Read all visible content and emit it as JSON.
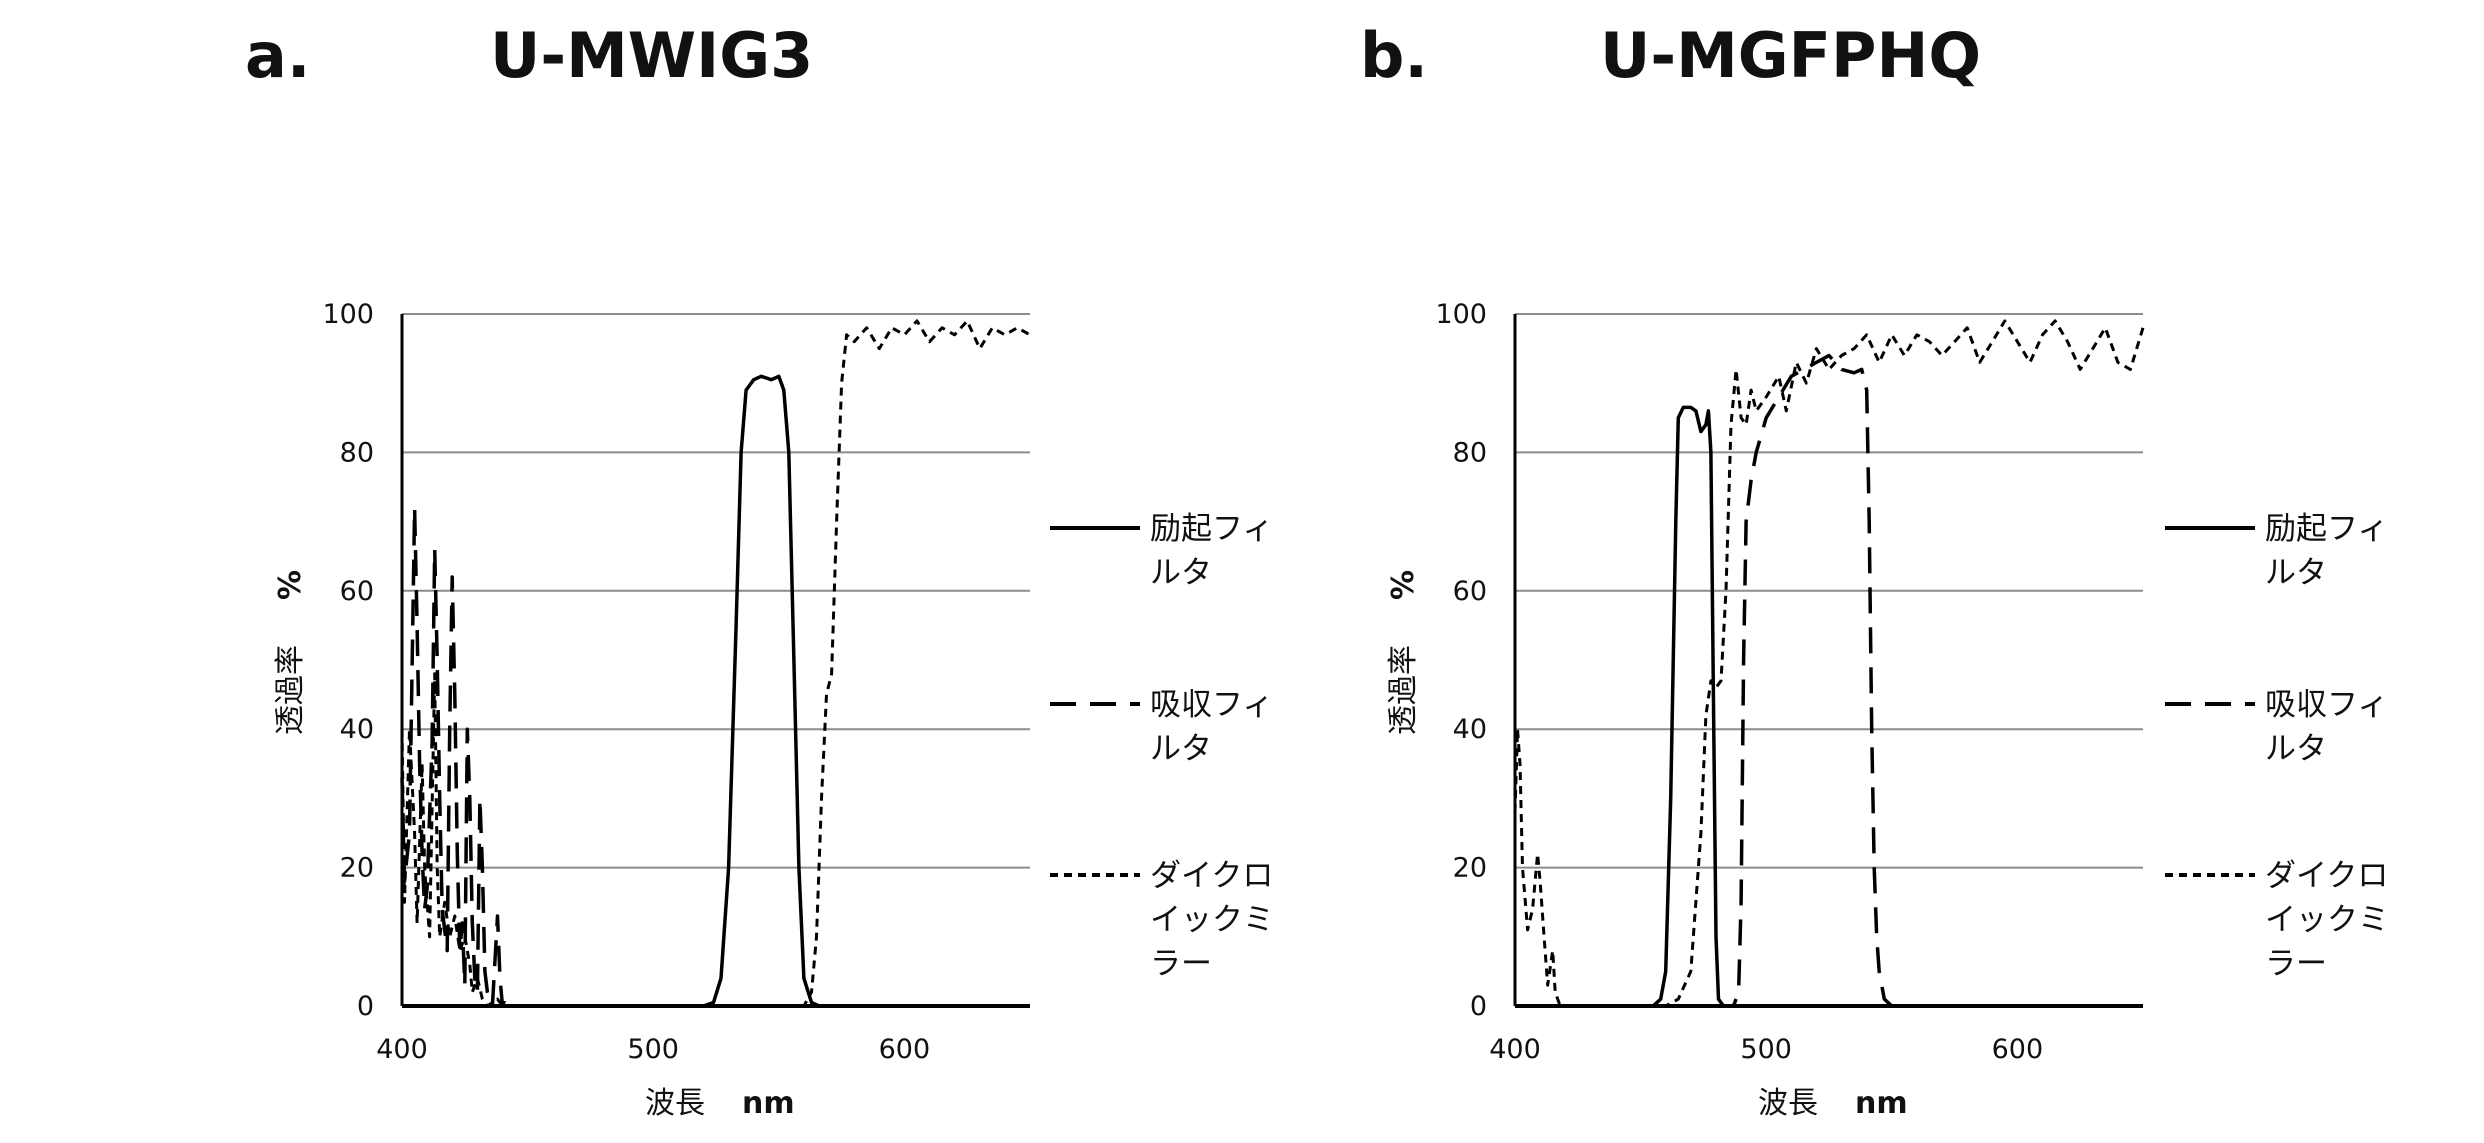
{
  "chart_data": [
    {
      "type": "line",
      "panel": "a.",
      "title": "U-MWIG3",
      "xlabel": "波長",
      "xunit": "nm",
      "ylabel": "透過率",
      "yunit": "%",
      "xlim": [
        400,
        650
      ],
      "ylim": [
        0,
        100
      ],
      "xticks": [
        400,
        500,
        600
      ],
      "yticks": [
        0,
        20,
        40,
        60,
        80,
        100
      ],
      "grid": true,
      "legend_position": "right",
      "series": [
        {
          "name": "励起フィルタ",
          "style": "solid",
          "points": [
            [
              400,
              0
            ],
            [
              520,
              0
            ],
            [
              524,
              0.5
            ],
            [
              527,
              4
            ],
            [
              530,
              20
            ],
            [
              533,
              55
            ],
            [
              535,
              80
            ],
            [
              537,
              89
            ],
            [
              540,
              90.5
            ],
            [
              543,
              91
            ],
            [
              547,
              90.5
            ],
            [
              550,
              91
            ],
            [
              552,
              89
            ],
            [
              554,
              80
            ],
            [
              556,
              50
            ],
            [
              558,
              20
            ],
            [
              560,
              4
            ],
            [
              563,
              0.5
            ],
            [
              566,
              0
            ],
            [
              650,
              0
            ]
          ]
        },
        {
          "name": "吸収フィルタ",
          "style": "dashed",
          "points": [
            [
              400,
              33
            ],
            [
              401,
              18
            ],
            [
              403,
              25
            ],
            [
              405,
              72
            ],
            [
              406,
              55
            ],
            [
              407,
              35
            ],
            [
              408,
              22
            ],
            [
              409,
              14
            ],
            [
              410,
              17
            ],
            [
              412,
              38
            ],
            [
              413,
              66
            ],
            [
              414,
              50
            ],
            [
              415,
              30
            ],
            [
              416,
              14
            ],
            [
              418,
              8
            ],
            [
              419,
              40
            ],
            [
              420,
              62
            ],
            [
              421,
              45
            ],
            [
              422,
              22
            ],
            [
              423,
              8
            ],
            [
              424,
              12
            ],
            [
              425,
              3
            ],
            [
              426,
              40
            ],
            [
              427,
              30
            ],
            [
              428,
              12
            ],
            [
              429,
              4
            ],
            [
              430,
              2
            ],
            [
              431,
              30
            ],
            [
              432,
              20
            ],
            [
              433,
              5
            ],
            [
              434,
              2
            ],
            [
              436,
              0
            ],
            [
              438,
              13
            ],
            [
              439,
              4
            ],
            [
              440,
              0
            ],
            [
              441,
              1
            ],
            [
              443,
              0
            ],
            [
              650,
              0
            ]
          ]
        },
        {
          "name": "ダイクロイックミラー",
          "style": "dotted",
          "points": [
            [
              400,
              40
            ],
            [
              401,
              15
            ],
            [
              403,
              40
            ],
            [
              405,
              25
            ],
            [
              406,
              12
            ],
            [
              408,
              35
            ],
            [
              409,
              20
            ],
            [
              411,
              10
            ],
            [
              413,
              48
            ],
            [
              414,
              20
            ],
            [
              415,
              10
            ],
            [
              417,
              15
            ],
            [
              419,
              10
            ],
            [
              421,
              13
            ],
            [
              423,
              8
            ],
            [
              425,
              10
            ],
            [
              427,
              6
            ],
            [
              428,
              2
            ],
            [
              430,
              4
            ],
            [
              432,
              1
            ],
            [
              434,
              0
            ],
            [
              438,
              1
            ],
            [
              440,
              0
            ],
            [
              560,
              0
            ],
            [
              563,
              2
            ],
            [
              565,
              10
            ],
            [
              567,
              30
            ],
            [
              569,
              45
            ],
            [
              571,
              48
            ],
            [
              573,
              70
            ],
            [
              575,
              90
            ],
            [
              577,
              97
            ],
            [
              580,
              96
            ],
            [
              585,
              98
            ],
            [
              590,
              95
            ],
            [
              595,
              98
            ],
            [
              600,
              97
            ],
            [
              605,
              99
            ],
            [
              610,
              96
            ],
            [
              615,
              98
            ],
            [
              620,
              97
            ],
            [
              625,
              99
            ],
            [
              630,
              95
            ],
            [
              635,
              98
            ],
            [
              640,
              97
            ],
            [
              645,
              98
            ],
            [
              650,
              97
            ]
          ]
        }
      ]
    },
    {
      "type": "line",
      "panel": "b.",
      "title": "U-MGFPHQ",
      "xlabel": "波長",
      "xunit": "nm",
      "ylabel": "透過率",
      "yunit": "%",
      "xlim": [
        400,
        650
      ],
      "ylim": [
        0,
        100
      ],
      "xticks": [
        400,
        500,
        600
      ],
      "yticks": [
        0,
        20,
        40,
        60,
        80,
        100
      ],
      "grid": true,
      "legend_position": "right",
      "series": [
        {
          "name": "励起フィルタ",
          "style": "solid",
          "points": [
            [
              400,
              0
            ],
            [
              455,
              0
            ],
            [
              458,
              1
            ],
            [
              460,
              5
            ],
            [
              462,
              30
            ],
            [
              464,
              70
            ],
            [
              465,
              85
            ],
            [
              467,
              86.5
            ],
            [
              470,
              86.5
            ],
            [
              472,
              86
            ],
            [
              474,
              83
            ],
            [
              476,
              84
            ],
            [
              477,
              86
            ],
            [
              478,
              80
            ],
            [
              479,
              45
            ],
            [
              480,
              10
            ],
            [
              481,
              1
            ],
            [
              483,
              0
            ],
            [
              650,
              0
            ]
          ]
        },
        {
          "name": "吸収フィルタ",
          "style": "dashed",
          "points": [
            [
              400,
              0
            ],
            [
              487,
              0
            ],
            [
              489,
              2
            ],
            [
              490,
              15
            ],
            [
              491,
              50
            ],
            [
              492,
              70
            ],
            [
              494,
              76
            ],
            [
              496,
              80
            ],
            [
              500,
              85
            ],
            [
              505,
              88
            ],
            [
              510,
              91
            ],
            [
              515,
              92
            ],
            [
              520,
              93
            ],
            [
              525,
              94
            ],
            [
              530,
              92
            ],
            [
              535,
              91.5
            ],
            [
              538,
              92
            ],
            [
              540,
              89
            ],
            [
              541,
              70
            ],
            [
              542,
              40
            ],
            [
              543,
              20
            ],
            [
              544,
              10
            ],
            [
              545,
              5
            ],
            [
              547,
              1
            ],
            [
              550,
              0
            ],
            [
              650,
              0
            ]
          ]
        },
        {
          "name": "ダイクロイックミラー",
          "style": "dotted",
          "points": [
            [
              400,
              28
            ],
            [
              401,
              40
            ],
            [
              402,
              35
            ],
            [
              403,
              20
            ],
            [
              405,
              11
            ],
            [
              407,
              14
            ],
            [
              409,
              22
            ],
            [
              410,
              18
            ],
            [
              412,
              8
            ],
            [
              413,
              3
            ],
            [
              415,
              8
            ],
            [
              416,
              2
            ],
            [
              418,
              0
            ],
            [
              460,
              0
            ],
            [
              465,
              1
            ],
            [
              470,
              5
            ],
            [
              474,
              25
            ],
            [
              476,
              42
            ],
            [
              478,
              47
            ],
            [
              480,
              46
            ],
            [
              482,
              47
            ],
            [
              484,
              60
            ],
            [
              486,
              84
            ],
            [
              488,
              92
            ],
            [
              490,
              85
            ],
            [
              492,
              84
            ],
            [
              494,
              89
            ],
            [
              496,
              86
            ],
            [
              500,
              88
            ],
            [
              505,
              91
            ],
            [
              508,
              86
            ],
            [
              512,
              93
            ],
            [
              516,
              90
            ],
            [
              520,
              95
            ],
            [
              525,
              92
            ],
            [
              530,
              94
            ],
            [
              535,
              95
            ],
            [
              540,
              97
            ],
            [
              545,
              93
            ],
            [
              550,
              97
            ],
            [
              555,
              94
            ],
            [
              560,
              97
            ],
            [
              565,
              96
            ],
            [
              570,
              94
            ],
            [
              575,
              96
            ],
            [
              580,
              98
            ],
            [
              585,
              93
            ],
            [
              590,
              96
            ],
            [
              595,
              99
            ],
            [
              600,
              96
            ],
            [
              605,
              93
            ],
            [
              610,
              97
            ],
            [
              615,
              99
            ],
            [
              620,
              96
            ],
            [
              625,
              92
            ],
            [
              630,
              95
            ],
            [
              635,
              98
            ],
            [
              640,
              93
            ],
            [
              645,
              92
            ],
            [
              650,
              98
            ]
          ]
        }
      ]
    }
  ]
}
